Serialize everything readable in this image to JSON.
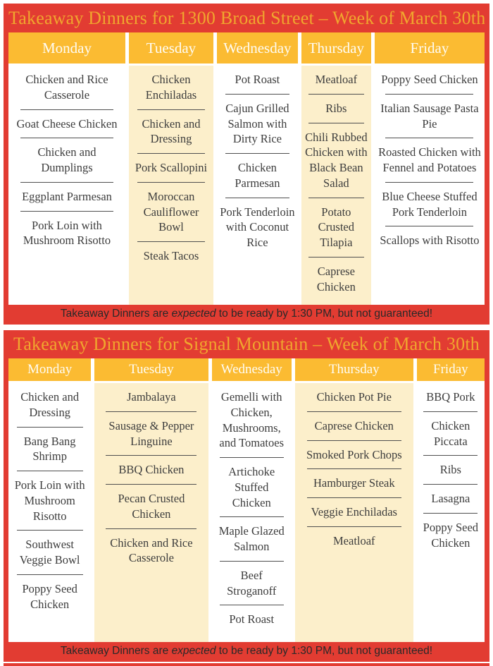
{
  "colors": {
    "frame_red": "#E23C32",
    "header_gold": "#FBBB32",
    "title_gold": "#F0A62E",
    "shaded_cream": "#FCEFCB",
    "item_text": "#3D3D3D",
    "footer_text": "#292929"
  },
  "tables": [
    {
      "title": "Takeaway Dinners for 1300 Broad Street – Week of March 30th",
      "footer": {
        "prefix": "Takeaway Dinners are ",
        "emphasis": "expected",
        "suffix": " to be ready by 1:30 PM, but not guaranteed!"
      },
      "columns": [
        {
          "day": "Monday",
          "width": "25.3%",
          "shaded": false,
          "items": [
            "Chicken and Rice Casserole",
            "Goat Cheese Chicken",
            "Chicken and Dumplings",
            "Eggplant Parmesan",
            "Pork Loin with Mushroom Risotto"
          ]
        },
        {
          "day": "Tuesday",
          "width": "18.3%",
          "shaded": true,
          "items": [
            "Chicken Enchiladas",
            "Chicken and Dressing",
            "Pork Scallopini",
            "Moroccan Cauliflower Bowl",
            "Steak Tacos"
          ]
        },
        {
          "day": "Wednesday",
          "width": "17.5%",
          "shaded": false,
          "items": [
            "Pot Roast",
            "Cajun Grilled Salmon with Dirty Rice",
            "Chicken Parmesan",
            "Pork Tenderloin with Coconut Rice"
          ]
        },
        {
          "day": "Thursday",
          "width": "15.1%",
          "shaded": true,
          "items": [
            "Meatloaf",
            "Ribs",
            "Chili Rubbed Chicken with Black Bean Salad",
            "Potato Crusted Tilapia",
            "Caprese Chicken"
          ]
        },
        {
          "day": "Friday",
          "width": "23.8%",
          "shaded": false,
          "items": [
            "Poppy Seed Chicken",
            "Italian Sausage Pasta Pie",
            "Roasted Chicken with Fennel and Potatoes",
            "Blue Cheese Stuffed Pork Tenderloin",
            "Scallops with Risotto"
          ]
        }
      ]
    },
    {
      "title": "Takeaway Dinners for Signal Mountain – Week of March 30th",
      "footer": {
        "prefix": "Takeaway Dinners are ",
        "emphasis": "expected",
        "suffix": " to be ready by 1:30 PM, but not guaranteed!"
      },
      "columns": [
        {
          "day": "Monday",
          "width": "17.9%",
          "shaded": false,
          "items": [
            "Chicken and Dressing",
            "Bang Bang Shrimp",
            "Pork Loin with Mushroom Risotto",
            "Southwest Veggie Bowl",
            "Poppy Seed Chicken"
          ]
        },
        {
          "day": "Tuesday",
          "width": "24.6%",
          "shaded": true,
          "items": [
            "Jambalaya",
            "Sausage & Pepper Linguine",
            "BBQ Chicken",
            "Pecan Crusted Chicken",
            "Chicken and Rice Casserole"
          ]
        },
        {
          "day": "Wednesday",
          "width": "17.3%",
          "shaded": false,
          "items": [
            "Gemelli with Chicken, Mushrooms, and Tomatoes",
            "Artichoke Stuffed Chicken",
            "Maple Glazed Salmon",
            "Beef Stroganoff",
            "Pot Roast"
          ]
        },
        {
          "day": "Thursday",
          "width": "25.6%",
          "shaded": true,
          "items": [
            "Chicken Pot Pie",
            "Caprese Chicken",
            "Smoked Pork Chops",
            "Hamburger Steak",
            "Veggie Enchiladas",
            "Meatloaf"
          ]
        },
        {
          "day": "Friday",
          "width": "14.7%",
          "shaded": false,
          "items": [
            "BBQ Pork",
            "Chicken Piccata",
            "Ribs",
            "Lasagna",
            "Poppy Seed Chicken"
          ]
        }
      ]
    }
  ]
}
